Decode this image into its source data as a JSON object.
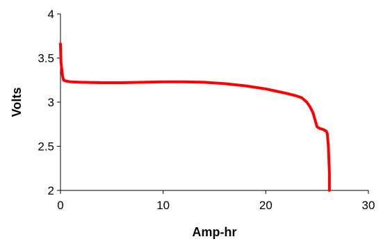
{
  "chart_data": {
    "type": "line",
    "title": "",
    "xlabel": "Amp-hr",
    "ylabel": "Volts",
    "xlim": [
      0,
      30
    ],
    "ylim": [
      2,
      4
    ],
    "x_ticks": [
      0,
      10,
      20,
      30
    ],
    "y_ticks": [
      2,
      2.5,
      3,
      3.5,
      4
    ],
    "x_tick_labels": [
      "0",
      "10",
      "20",
      "30"
    ],
    "y_tick_labels": [
      "2",
      "2.5",
      "3",
      "3.5",
      "4"
    ],
    "grid": false,
    "legend": "none",
    "series": [
      {
        "color": "#ff0000",
        "x": [
          0.0,
          0.05,
          0.1,
          0.2,
          0.3,
          0.5,
          1.0,
          2.0,
          4.0,
          6.0,
          8.0,
          10.0,
          12.0,
          14.0,
          16.0,
          18.0,
          20.0,
          21.0,
          22.0,
          23.0,
          23.5,
          24.0,
          24.3,
          24.6,
          24.8,
          25.0,
          25.3,
          25.6,
          25.9,
          26.0,
          26.1,
          26.2,
          26.2
        ],
        "y": [
          3.66,
          3.45,
          3.4,
          3.3,
          3.25,
          3.24,
          3.23,
          3.225,
          3.22,
          3.22,
          3.225,
          3.23,
          3.23,
          3.225,
          3.21,
          3.185,
          3.15,
          3.125,
          3.1,
          3.07,
          3.05,
          3.0,
          2.95,
          2.88,
          2.8,
          2.72,
          2.7,
          2.69,
          2.67,
          2.64,
          2.5,
          2.2,
          2.0
        ]
      }
    ]
  }
}
